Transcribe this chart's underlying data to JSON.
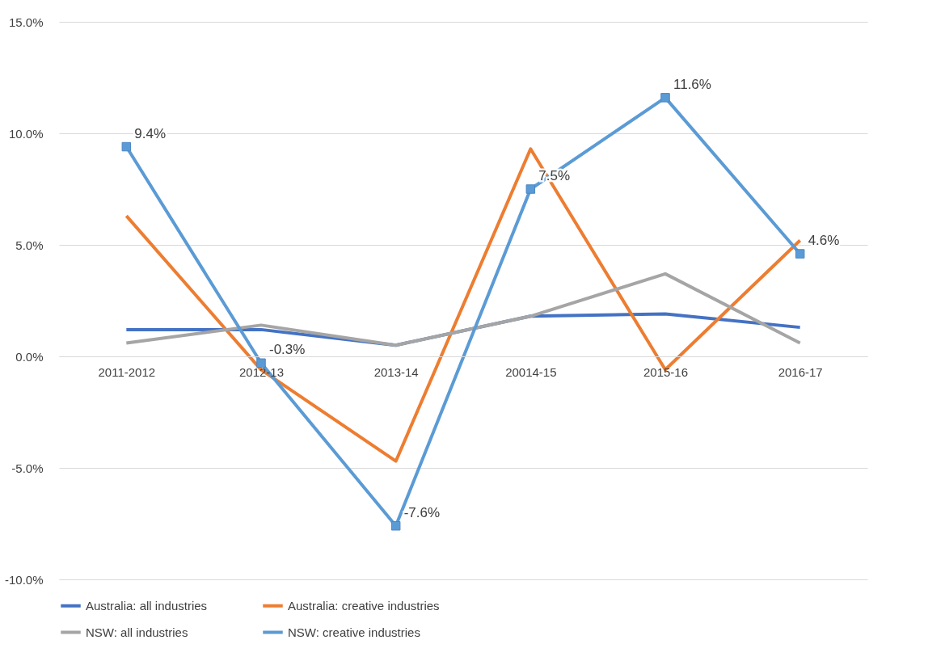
{
  "chart_data": {
    "type": "line",
    "categories": [
      "2011-2012",
      "2012-13",
      "2013-14",
      "20014-15",
      "2015-16",
      "2016-17"
    ],
    "series": [
      {
        "name": "Australia: all industries",
        "color": "#4472c4",
        "values": [
          1.2,
          1.2,
          0.5,
          1.8,
          1.9,
          1.3
        ]
      },
      {
        "name": "Australia: creative industries",
        "color": "#ed7d31",
        "values": [
          6.3,
          -0.6,
          -4.7,
          9.3,
          -0.6,
          5.2
        ]
      },
      {
        "name": "NSW: all industries",
        "color": "#a5a5a5",
        "values": [
          0.6,
          1.4,
          0.5,
          1.8,
          3.7,
          0.6
        ]
      },
      {
        "name": "NSW: creative industries",
        "color": "#5b9bd5",
        "marker": "square",
        "values": [
          9.4,
          -0.3,
          -7.6,
          7.5,
          11.6,
          4.6
        ],
        "value_labels": [
          "9.4%",
          "-0.3%",
          "-7.6%",
          "7.5%",
          "11.6%",
          "4.6%"
        ]
      }
    ],
    "ylim": [
      -10,
      15
    ],
    "yticks": [
      {
        "value": -10,
        "label": "-10.0%"
      },
      {
        "value": -5,
        "label": "-5.0%"
      },
      {
        "value": 0,
        "label": "0.0%"
      },
      {
        "value": 5,
        "label": "5.0%"
      },
      {
        "value": 10,
        "label": "10.0%"
      },
      {
        "value": 15,
        "label": "15.0%"
      }
    ],
    "grid": "y",
    "legend": "bottom"
  }
}
